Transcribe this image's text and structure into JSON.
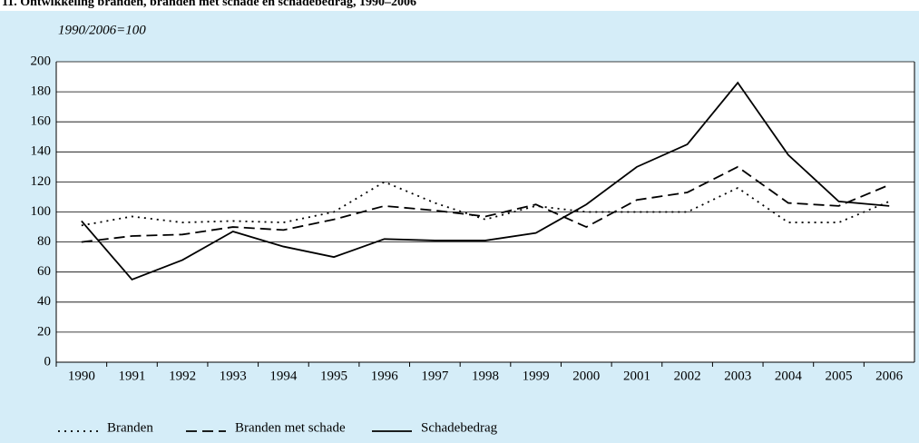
{
  "chart_data": {
    "type": "line",
    "title": "11. Ontwikkeling branden, branden met schade en schadebedrag, 1990–2006",
    "subtitle": "1990/2006=100",
    "categories": [
      "1990",
      "1991",
      "1992",
      "1993",
      "1994",
      "1995",
      "1996",
      "1997",
      "1998",
      "1999",
      "2000",
      "2001",
      "2002",
      "2003",
      "2004",
      "2005",
      "2006"
    ],
    "series": [
      {
        "name": "Branden",
        "color": "#000000",
        "style": "dotted",
        "values": [
          91,
          97,
          93,
          94,
          93,
          100,
          120,
          106,
          95,
          104,
          100,
          100,
          100,
          116,
          93,
          93,
          107
        ]
      },
      {
        "name": "Branden met schade",
        "color": "#000000",
        "style": "dashed",
        "values": [
          80,
          84,
          85,
          90,
          88,
          95,
          104,
          101,
          97,
          105,
          90,
          108,
          113,
          130,
          106,
          104,
          118
        ]
      },
      {
        "name": "Schadebedrag",
        "color": "#000000",
        "style": "solid",
        "values": [
          94,
          55,
          68,
          87,
          77,
          70,
          82,
          81,
          81,
          86,
          105,
          130,
          145,
          186,
          138,
          107,
          104
        ]
      }
    ],
    "ylim": [
      0,
      200
    ],
    "yticks": [
      0,
      20,
      40,
      60,
      80,
      100,
      120,
      140,
      160,
      180,
      200
    ],
    "grid": true,
    "legend": "bottom-left"
  }
}
